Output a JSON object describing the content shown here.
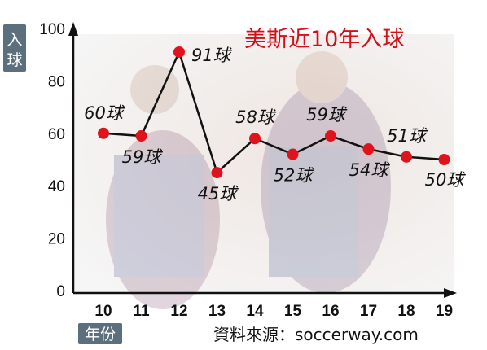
{
  "chart_data": {
    "type": "line",
    "title": "美斯近10年入球",
    "xlabel": "年份",
    "ylabel": "入球",
    "source": "資料來源：soccerway.com",
    "categories": [
      "10",
      "11",
      "12",
      "13",
      "14",
      "15",
      "16",
      "17",
      "18",
      "19"
    ],
    "values": [
      60,
      59,
      91,
      45,
      58,
      52,
      59,
      54,
      51,
      50
    ],
    "data_labels": [
      "60球",
      "59球",
      "91球",
      "45球",
      "58球",
      "52球",
      "59球",
      "54球",
      "51球",
      "50球"
    ],
    "y_ticks": [
      "0",
      "20",
      "40",
      "60",
      "80",
      "100"
    ],
    "ylim": [
      0,
      100
    ],
    "colors": {
      "line": "#111111",
      "marker": "#e0121b",
      "title": "#d0101a",
      "ylabel_box": "#5b6f7c"
    }
  }
}
